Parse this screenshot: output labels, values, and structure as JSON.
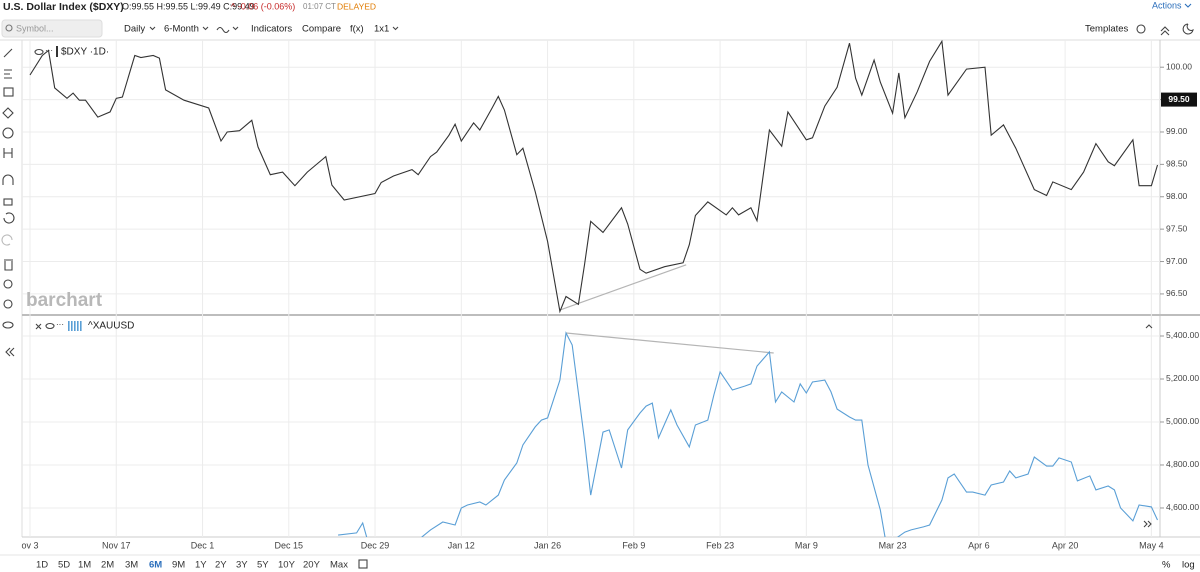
{
  "header": {
    "title": "U.S. Dollar Index ($DXY)",
    "ohlc": "O:99.55 H:99.55 L:99.49 C:99.49",
    "change": "^ -0.06 (-0.06%)",
    "time": "01:07 CT",
    "status": "DELAYED",
    "actions": "Actions"
  },
  "toolbar": {
    "search_placeholder": "Symbol...",
    "items": [
      "Daily",
      "6-Month",
      "Indicators",
      "Compare",
      "f(x)",
      "1x1"
    ],
    "templates": "Templates"
  },
  "watermark": "barchart",
  "ranges": [
    "1D",
    "5D",
    "1M",
    "2M",
    "3M",
    "6M",
    "9M",
    "1Y",
    "2Y",
    "3Y",
    "5Y",
    "10Y",
    "20Y",
    "Max"
  ],
  "active_range_index": 5,
  "scale_options": [
    "%",
    "log"
  ],
  "chart_data": [
    {
      "type": "line",
      "title": "$DXY ·1D·",
      "grid": true,
      "ylim": [
        96.19,
        100.42
      ],
      "yticks": [
        {
          "value": 96.5,
          "label": "96.50"
        },
        {
          "value": 97,
          "label": "97.00"
        },
        {
          "value": 97.5,
          "label": "97.50"
        },
        {
          "value": 98,
          "label": "98.00"
        },
        {
          "value": 98.5,
          "label": "98.50"
        },
        {
          "value": 99,
          "label": "99.00"
        },
        {
          "value": 99.5,
          "label": "99.50"
        },
        {
          "value": 100,
          "label": "100.00"
        }
      ],
      "xlim": [
        -1.3,
        183.4
      ],
      "x": [
        0,
        2,
        3,
        4,
        6,
        7,
        8,
        9,
        11,
        13,
        14,
        15,
        17,
        18,
        20,
        21,
        22,
        25,
        29,
        31,
        32,
        34,
        36,
        37,
        39,
        41,
        43,
        45,
        46,
        48,
        49,
        51,
        56,
        57,
        59,
        62,
        63,
        65,
        66,
        68,
        69,
        70,
        72,
        73,
        75,
        76,
        77,
        79,
        80,
        82,
        84,
        86,
        87,
        89,
        90,
        91,
        93,
        96,
        97,
        99,
        100,
        103,
        106,
        107,
        108,
        110,
        113,
        114,
        115,
        117,
        118,
        120,
        122,
        123,
        126,
        127,
        129,
        131,
        133,
        134,
        135,
        137,
        138,
        140,
        141,
        142,
        144,
        146,
        148,
        149,
        152,
        155,
        156,
        158,
        160,
        163,
        165,
        166,
        169,
        171,
        173,
        175,
        176,
        179,
        180,
        182,
        183
      ],
      "series": [
        {
          "name": "$DXY",
          "color": "#333333",
          "values": [
            99.88,
            100.18,
            100.26,
            99.68,
            99.52,
            99.6,
            99.49,
            99.49,
            99.23,
            99.31,
            99.52,
            99.54,
            100.18,
            100.15,
            100.18,
            100.14,
            99.65,
            99.49,
            99.37,
            98.86,
            99.0,
            99.02,
            99.18,
            98.77,
            98.34,
            98.38,
            98.17,
            98.38,
            98.46,
            98.62,
            98.18,
            97.95,
            98.05,
            98.22,
            98.32,
            98.42,
            98.34,
            98.62,
            98.69,
            98.95,
            99.12,
            98.86,
            99.14,
            99.03,
            99.37,
            99.55,
            99.34,
            98.65,
            98.75,
            98.08,
            97.31,
            96.23,
            96.46,
            96.34,
            96.95,
            97.62,
            97.45,
            97.83,
            97.58,
            96.88,
            96.82,
            96.92,
            96.98,
            97.26,
            97.71,
            97.92,
            97.72,
            97.83,
            97.72,
            97.83,
            97.63,
            99.03,
            98.78,
            99.31,
            98.88,
            98.91,
            99.4,
            99.69,
            100.37,
            99.83,
            99.57,
            100.11,
            99.77,
            99.29,
            99.91,
            99.22,
            99.62,
            100.09,
            100.4,
            99.57,
            99.97,
            100.0,
            98.95,
            99.11,
            98.75,
            98.11,
            98.02,
            98.23,
            98.11,
            98.38,
            98.82,
            98.54,
            98.48,
            98.88,
            98.17,
            98.17,
            98.49
          ]
        }
      ],
      "trendlines": [
        {
          "color": "#b5b5b5",
          "x": [
            86,
            106.5
          ],
          "y": [
            96.25,
            96.95
          ]
        }
      ],
      "last_price": {
        "value": 99.5,
        "label": "99.50"
      }
    },
    {
      "type": "line",
      "title": "^XAUUSD",
      "grid": true,
      "ylim": [
        4465,
        5493
      ],
      "yticks": [
        {
          "value": 4600,
          "label": "4,600.00"
        },
        {
          "value": 4800,
          "label": "4,800.00"
        },
        {
          "value": 5000,
          "label": "5,000.00"
        },
        {
          "value": 5200,
          "label": "5,200.00"
        },
        {
          "value": 5400,
          "label": "5,400.00"
        }
      ],
      "xlim": [
        -1.3,
        183.4
      ],
      "xticks": [
        {
          "value": 0,
          "label": "ov 3"
        },
        {
          "value": 14,
          "label": "Nov 17"
        },
        {
          "value": 28,
          "label": "Dec 1"
        },
        {
          "value": 42,
          "label": "Dec 15"
        },
        {
          "value": 56,
          "label": "Dec 29"
        },
        {
          "value": 70,
          "label": "Jan 12"
        },
        {
          "value": 84,
          "label": "Jan 26"
        },
        {
          "value": 98,
          "label": "Feb 9"
        },
        {
          "value": 112,
          "label": "Feb 23"
        },
        {
          "value": 126,
          "label": "Mar 9"
        },
        {
          "value": 140,
          "label": "Mar 23"
        },
        {
          "value": 154,
          "label": "Apr 6"
        },
        {
          "value": 168,
          "label": "Apr 20"
        },
        {
          "value": 182,
          "label": "May 4"
        }
      ],
      "x": [
        50,
        53,
        54,
        55,
        63,
        65,
        67,
        69,
        70,
        71,
        73,
        74,
        76,
        77,
        79,
        80,
        82,
        83,
        84,
        86,
        87,
        88,
        90,
        91,
        93,
        94,
        96,
        97,
        99,
        100,
        101,
        102,
        104,
        105,
        107,
        108,
        110,
        111,
        112,
        114,
        116,
        117,
        118,
        120,
        121,
        122,
        124,
        125,
        126,
        127,
        129,
        130,
        131,
        133,
        134,
        135,
        136,
        138,
        139,
        142,
        143,
        145,
        146,
        148,
        149,
        150,
        152,
        153,
        155,
        156,
        158,
        159,
        160,
        162,
        163,
        165,
        166,
        167,
        169,
        170,
        172,
        173,
        175,
        176,
        177,
        179,
        180,
        182,
        183
      ],
      "series": [
        {
          "name": "^XAUUSD",
          "color": "#5a9fd6",
          "values": [
            4474,
            4484,
            4530,
            4428,
            4451,
            4498,
            4535,
            4521,
            4600,
            4614,
            4628,
            4614,
            4660,
            4730,
            4809,
            4893,
            4977,
            5009,
            5019,
            5195,
            5414,
            5358,
            4916,
            4660,
            4953,
            4963,
            4786,
            4963,
            5042,
            5074,
            5088,
            4926,
            5056,
            4986,
            4884,
            4986,
            5009,
            5126,
            5233,
            5149,
            5167,
            5177,
            5260,
            5326,
            5093,
            5140,
            5093,
            5177,
            5135,
            5186,
            5195,
            5140,
            5060,
            5023,
            5009,
            5009,
            4800,
            4591,
            4428,
            4488,
            4498,
            4512,
            4521,
            4637,
            4740,
            4758,
            4674,
            4674,
            4660,
            4707,
            4721,
            4772,
            4740,
            4758,
            4837,
            4795,
            4795,
            4833,
            4814,
            4726,
            4749,
            4684,
            4702,
            4684,
            4600,
            4540,
            4614,
            4605,
            4544
          ]
        }
      ],
      "trendlines": [
        {
          "color": "#b5b5b5",
          "x": [
            87,
            120.7
          ],
          "y": [
            5414,
            5321
          ]
        }
      ]
    }
  ]
}
